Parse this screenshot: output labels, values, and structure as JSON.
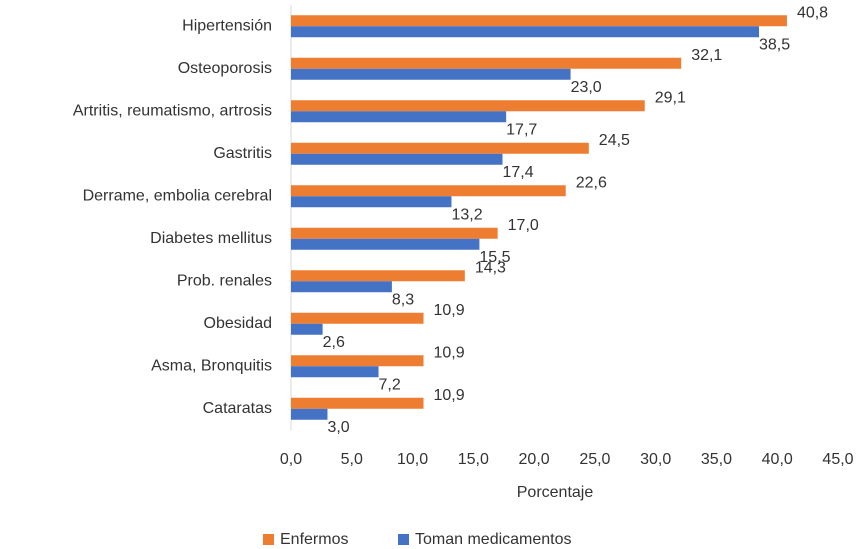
{
  "chart_data": {
    "type": "barh",
    "categories": [
      "Hipertensión",
      "Osteoporosis",
      "Artritis, reumatismo, artrosis",
      "Gastritis",
      "Derrame, embolia cerebral",
      "Diabetes mellitus",
      "Prob. renales",
      "Obesidad",
      "Asma, Bronquitis",
      "Cataratas"
    ],
    "series": [
      {
        "name": "Enfermos",
        "color": "#ed7d31",
        "values": [
          40.8,
          32.1,
          29.1,
          24.5,
          22.6,
          17.0,
          14.3,
          10.9,
          10.9,
          10.9
        ],
        "value_labels": [
          "40,8",
          "32,1",
          "29,1",
          "24,5",
          "22,6",
          "17,0",
          "14,3",
          "10,9",
          "10,9",
          "10,9"
        ]
      },
      {
        "name": "Toman medicamentos",
        "color": "#4472c4",
        "values": [
          38.5,
          23.0,
          17.7,
          17.4,
          13.2,
          15.5,
          8.3,
          2.6,
          7.2,
          3.0
        ],
        "value_labels": [
          "38,5",
          "23,0",
          "17,7",
          "17,4",
          "13,2",
          "15,5",
          "8,3",
          "2,6",
          "7,2",
          "3,0"
        ]
      }
    ],
    "x_label": "Porcentaje",
    "xlim": [
      0,
      45
    ],
    "xticks": [
      {
        "value": 0,
        "label": "0,0"
      },
      {
        "value": 5,
        "label": "5,0"
      },
      {
        "value": 10,
        "label": "10,0"
      },
      {
        "value": 15,
        "label": "15,0"
      },
      {
        "value": 20,
        "label": "20,0"
      },
      {
        "value": 25,
        "label": "25,0"
      },
      {
        "value": 30,
        "label": "30,0"
      },
      {
        "value": 35,
        "label": "35,0"
      },
      {
        "value": 40,
        "label": "40,0"
      },
      {
        "value": 45,
        "label": "45,0"
      }
    ],
    "grid": false,
    "legend": "bottom"
  }
}
